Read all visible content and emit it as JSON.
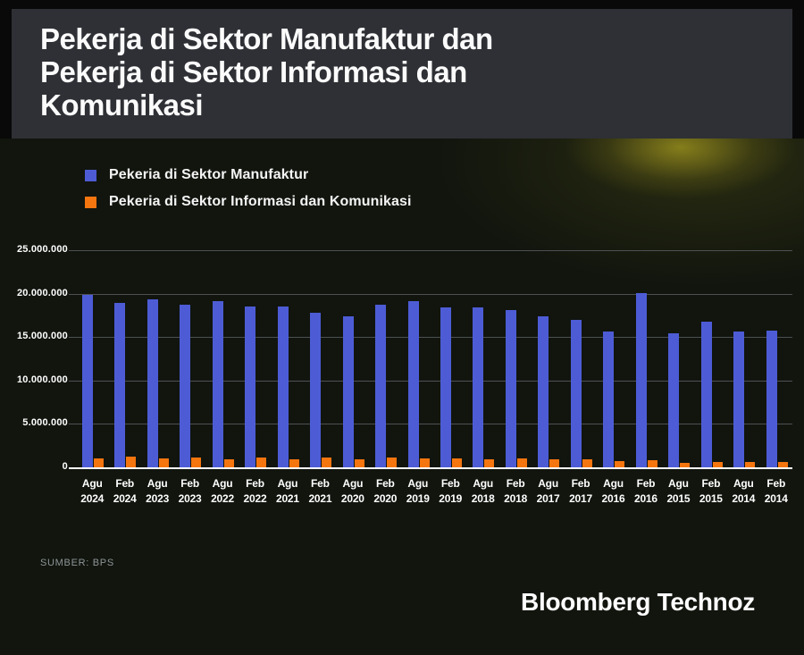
{
  "title_lines": [
    "Pekerja di Sektor Manufaktur dan",
    "Pekerja di Sektor Informasi dan",
    "Komunikasi"
  ],
  "legend": [
    {
      "label": "Pekeria di Sektor Manufaktur",
      "color": "#4d5cd5"
    },
    {
      "label": "Pekeria di Sektor Informasi dan Komunikasi",
      "color": "#f5750f"
    }
  ],
  "source": "SUMBER: BPS",
  "brand": "Bloomberg Technoz",
  "chart_data": {
    "type": "bar",
    "title": "Pekerja di Sektor Manufaktur dan Pekerja di Sektor Informasi dan Komunikasi",
    "categories": [
      "Agu 2024",
      "Feb 2024",
      "Agu 2023",
      "Feb 2023",
      "Agu 2022",
      "Feb 2022",
      "Agu 2021",
      "Feb 2021",
      "Agu 2020",
      "Feb 2020",
      "Agu 2019",
      "Feb 2019",
      "Agu 2018",
      "Feb 2018",
      "Agu 2017",
      "Feb 2017",
      "Agu 2016",
      "Feb 2016",
      "Agu 2015",
      "Feb 2015",
      "Agu 2014",
      "Feb 2014"
    ],
    "series": [
      {
        "name": "Pekeria di Sektor Manufaktur",
        "color": "#4d5cd5",
        "values": [
          19900000,
          18900000,
          19350000,
          18750000,
          19100000,
          18550000,
          18550000,
          17800000,
          17400000,
          18750000,
          19150000,
          18450000,
          18400000,
          18100000,
          17400000,
          17000000,
          15600000,
          20050000,
          15450000,
          16750000,
          15600000,
          15750000
        ]
      },
      {
        "name": "Pekeria di Sektor Informasi dan Komunikasi",
        "color": "#f5750f",
        "values": [
          1000000,
          1200000,
          1000000,
          1150000,
          950000,
          1100000,
          950000,
          1100000,
          950000,
          1100000,
          1000000,
          1000000,
          900000,
          1000000,
          900000,
          900000,
          700000,
          800000,
          550000,
          650000,
          600000,
          650000
        ]
      }
    ],
    "xlabel": "",
    "ylabel": "",
    "ylim": [
      0,
      25000000
    ],
    "yticks": [
      0,
      5000000,
      10000000,
      15000000,
      20000000,
      25000000
    ],
    "ytick_labels": [
      "0",
      "5.000.000",
      "10.000.000",
      "15.000.000",
      "20.000.000",
      "25.000.000"
    ],
    "grid": true,
    "legend_position": "top-left"
  }
}
